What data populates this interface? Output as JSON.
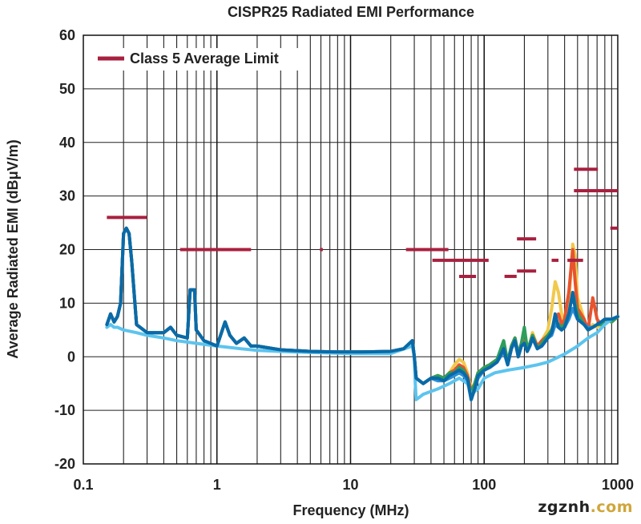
{
  "chart_data": {
    "type": "line",
    "title": "CISPR25 Radiated EMI Performance",
    "xlabel": "Frequency (MHz)",
    "ylabel": "Average Radiated EMI (dBμV/m)",
    "xscale": "log",
    "xlim": [
      0.1,
      1000
    ],
    "ylim": [
      -20,
      60
    ],
    "x_ticks": [
      "0.1",
      "1",
      "10",
      "100",
      "1000"
    ],
    "y_ticks": [
      "60",
      "50",
      "40",
      "30",
      "20",
      "10",
      "0",
      "-10",
      "-20"
    ],
    "grid": true,
    "legend": {
      "placement": "top-left",
      "entries": [
        {
          "label": "Class 5 Average Limit",
          "color": "#a8203f"
        }
      ]
    },
    "limit_line": {
      "name": "Class 5 Average Limit",
      "color": "#a8203f",
      "segments": [
        {
          "x": [
            0.15,
            0.3
          ],
          "y": 26
        },
        {
          "x": [
            0.53,
            1.8
          ],
          "y": 20
        },
        {
          "x": [
            5.9,
            6.2
          ],
          "y": 20
        },
        {
          "x": [
            26,
            54
          ],
          "y": 20
        },
        {
          "x": [
            41,
            108
          ],
          "y": 18
        },
        {
          "x": [
            65,
            87
          ],
          "y": 15
        },
        {
          "x": [
            142,
            175
          ],
          "y": 15
        },
        {
          "x": [
            176,
            245
          ],
          "y": 22
        },
        {
          "x": [
            176,
            245
          ],
          "y": 16
        },
        {
          "x": [
            320,
            360
          ],
          "y": 18
        },
        {
          "x": [
            420,
            550
          ],
          "y": 18
        },
        {
          "x": [
            470,
            710
          ],
          "y": 35
        },
        {
          "x": [
            470,
            1000
          ],
          "y": 31
        },
        {
          "x": [
            880,
            1000
          ],
          "y": 24
        }
      ]
    },
    "series": [
      {
        "color": "#f2c94c",
        "x": [
          0.15,
          0.16,
          0.17,
          0.18,
          0.19,
          0.2,
          0.21,
          0.22,
          0.23,
          0.25,
          0.3,
          0.4,
          0.45,
          0.5,
          0.6,
          0.63,
          0.65,
          0.68,
          0.7,
          0.8,
          1.0,
          1.15,
          1.25,
          1.4,
          1.6,
          1.8,
          2.0,
          3.0,
          5.0,
          8.0,
          12.0,
          20.0,
          25.0,
          29.0,
          30.0,
          31.0,
          35.0,
          40.0,
          45.0,
          50.0,
          55.0,
          60.0,
          65.0,
          70.0,
          75.0,
          80.0,
          85.0,
          90.0,
          100.0,
          110.0,
          125.0,
          140.0,
          150.0,
          160.0,
          170.0,
          180.0,
          190.0,
          200.0,
          210.0,
          220.0,
          230.0,
          250.0,
          270.0,
          300.0,
          320.0,
          340.0,
          360.0,
          380.0,
          400.0,
          430.0,
          460.0,
          480.0,
          500.0,
          530.0,
          560.0,
          600.0,
          650.0,
          700.0,
          750.0,
          800.0,
          900.0,
          1000.0
        ],
        "y": [
          6,
          8,
          6.5,
          7.5,
          10,
          23,
          24,
          23,
          18,
          6,
          4.5,
          4.5,
          5.5,
          4,
          3.5,
          12.5,
          12.5,
          12.5,
          5,
          3,
          2,
          6.5,
          4,
          2.5,
          3.5,
          2,
          2,
          1.3,
          1,
          0.9,
          0.9,
          1,
          1.5,
          3,
          0,
          -4,
          -5,
          -4,
          -3.5,
          -4,
          -3,
          -1.5,
          -0.5,
          -1,
          -3,
          -6,
          -5,
          -3,
          -2,
          -1.5,
          -0.5,
          1.5,
          -1,
          2,
          3.5,
          0.5,
          2.5,
          3,
          1.5,
          2.5,
          4.5,
          2,
          3,
          5,
          9,
          14,
          12,
          8,
          6,
          10,
          21,
          19,
          11,
          9,
          7,
          5,
          6,
          5.5,
          6,
          7,
          6.5,
          7.5
        ]
      },
      {
        "color": "#e8532f",
        "x": [
          0.15,
          0.16,
          0.17,
          0.18,
          0.19,
          0.2,
          0.21,
          0.22,
          0.23,
          0.25,
          0.3,
          0.4,
          0.45,
          0.5,
          0.6,
          0.63,
          0.65,
          0.68,
          0.7,
          0.8,
          1.0,
          1.15,
          1.25,
          1.4,
          1.6,
          1.8,
          2.0,
          3.0,
          5.0,
          8.0,
          12.0,
          20.0,
          25.0,
          29.0,
          30.0,
          31.0,
          35.0,
          40.0,
          45.0,
          50.0,
          55.0,
          60.0,
          65.0,
          70.0,
          75.0,
          80.0,
          85.0,
          90.0,
          100.0,
          110.0,
          125.0,
          140.0,
          150.0,
          160.0,
          170.0,
          180.0,
          190.0,
          200.0,
          210.0,
          220.0,
          230.0,
          250.0,
          270.0,
          300.0,
          320.0,
          340.0,
          360.0,
          380.0,
          400.0,
          430.0,
          460.0,
          480.0,
          500.0,
          530.0,
          560.0,
          600.0,
          650.0,
          700.0,
          750.0,
          800.0,
          900.0,
          1000.0
        ],
        "y": [
          6,
          8,
          6.5,
          7.5,
          10,
          23,
          24,
          23,
          18,
          6,
          4.5,
          4.5,
          5.5,
          4,
          3.5,
          12.5,
          12.5,
          12.5,
          5,
          3,
          2,
          6.5,
          4,
          2.5,
          3.5,
          2,
          2,
          1.3,
          1,
          0.9,
          0.9,
          1,
          1.5,
          3,
          0,
          -4,
          -5,
          -4,
          -3.5,
          -4,
          -3,
          -2.5,
          -1.5,
          -2,
          -3.5,
          -6.5,
          -5,
          -3,
          -2,
          -1.5,
          -0.5,
          1.5,
          -1,
          2,
          3.5,
          0.5,
          2.5,
          3,
          1.5,
          2.5,
          4,
          2,
          3,
          4,
          5,
          7,
          8,
          6,
          7,
          12,
          20,
          14,
          9,
          8,
          7,
          5,
          11,
          7,
          6,
          7,
          6.5,
          7.5
        ]
      },
      {
        "color": "#2e9e5b",
        "x": [
          0.15,
          0.16,
          0.17,
          0.18,
          0.19,
          0.2,
          0.21,
          0.22,
          0.23,
          0.25,
          0.3,
          0.4,
          0.45,
          0.5,
          0.6,
          0.63,
          0.65,
          0.68,
          0.7,
          0.8,
          1.0,
          1.15,
          1.25,
          1.4,
          1.6,
          1.8,
          2.0,
          3.0,
          5.0,
          8.0,
          12.0,
          20.0,
          25.0,
          29.0,
          30.0,
          31.0,
          35.0,
          40.0,
          45.0,
          50.0,
          55.0,
          60.0,
          65.0,
          70.0,
          75.0,
          80.0,
          85.0,
          90.0,
          100.0,
          110.0,
          125.0,
          140.0,
          150.0,
          160.0,
          170.0,
          180.0,
          190.0,
          200.0,
          210.0,
          220.0,
          230.0,
          250.0,
          270.0,
          300.0,
          320.0,
          340.0,
          360.0,
          380.0,
          400.0,
          430.0,
          460.0,
          480.0,
          500.0,
          530.0,
          560.0,
          600.0,
          650.0,
          700.0,
          750.0,
          800.0,
          900.0,
          1000.0
        ],
        "y": [
          6,
          8,
          6.5,
          7.5,
          10,
          23,
          24,
          23,
          18,
          6,
          4.5,
          4.5,
          5.5,
          4,
          3.5,
          12.5,
          12.5,
          12.5,
          5,
          3,
          2,
          6.5,
          4,
          2.5,
          3.5,
          2,
          2,
          1.3,
          1,
          0.9,
          0.9,
          1,
          1.5,
          3,
          0,
          -4,
          -5,
          -4,
          -3.5,
          -4,
          -3,
          -3,
          -2,
          -2.5,
          -4,
          -7,
          -5,
          -3,
          -2,
          -1.5,
          -0.5,
          3,
          -1,
          2,
          3.5,
          0.5,
          2.5,
          5.5,
          1.5,
          2.5,
          4,
          1.5,
          2.5,
          4,
          5,
          7,
          6,
          5.5,
          6,
          8,
          12,
          10,
          8,
          7,
          6,
          5,
          5.5,
          6,
          6,
          7,
          6.5,
          7.5
        ]
      },
      {
        "color": "#2a8fd6",
        "x": [
          0.15,
          0.16,
          0.17,
          0.18,
          0.19,
          0.2,
          0.21,
          0.22,
          0.23,
          0.25,
          0.3,
          0.4,
          0.45,
          0.5,
          0.6,
          0.63,
          0.65,
          0.68,
          0.7,
          0.8,
          1.0,
          1.15,
          1.25,
          1.4,
          1.6,
          1.8,
          2.0,
          3.0,
          5.0,
          8.0,
          12.0,
          20.0,
          25.0,
          29.0,
          30.0,
          31.0,
          35.0,
          40.0,
          45.0,
          50.0,
          55.0,
          60.0,
          65.0,
          70.0,
          75.0,
          80.0,
          85.0,
          90.0,
          100.0,
          110.0,
          125.0,
          140.0,
          150.0,
          160.0,
          170.0,
          180.0,
          190.0,
          200.0,
          210.0,
          220.0,
          230.0,
          250.0,
          270.0,
          300.0,
          320.0,
          340.0,
          360.0,
          380.0,
          400.0,
          430.0,
          460.0,
          480.0,
          500.0,
          530.0,
          560.0,
          600.0,
          650.0,
          700.0,
          750.0,
          800.0,
          900.0,
          1000.0
        ],
        "y": [
          6,
          8,
          6.5,
          7.5,
          10,
          23,
          24,
          23,
          18,
          6,
          4.5,
          4.5,
          5.5,
          4,
          3.5,
          12.5,
          12.5,
          12.5,
          5,
          3,
          2,
          6.5,
          4,
          2.5,
          3.5,
          2,
          2,
          1.3,
          1,
          0.9,
          0.9,
          1,
          1.5,
          3,
          0,
          -4,
          -5,
          -4,
          -4.5,
          -4.5,
          -4,
          -3.5,
          -3,
          -3.5,
          -4.5,
          -8,
          -6,
          -4,
          -2.5,
          -2,
          -1,
          1,
          -1.5,
          1.5,
          3,
          0,
          2,
          2.5,
          1,
          2,
          3.5,
          1.5,
          2,
          3.5,
          4,
          6,
          5.5,
          5,
          5.5,
          7,
          9,
          8,
          7,
          6.5,
          6,
          5.5,
          5.5,
          6,
          6.5,
          7,
          7,
          7.5
        ]
      },
      {
        "color": "#5cc4ee",
        "x": [
          0.15,
          0.16,
          0.17,
          0.18,
          0.2,
          0.25,
          0.3,
          0.4,
          0.5,
          0.7,
          1.0,
          1.5,
          2.0,
          3.0,
          5.0,
          10.0,
          20.0,
          29.0,
          30.0,
          30.5,
          31.0,
          35.0,
          45.0,
          55.0,
          65.0,
          75.0,
          80.0,
          90.0,
          100.0,
          120.0,
          150.0,
          200.0,
          250.0,
          300.0,
          400.0,
          500.0,
          600.0,
          700.0,
          800.0,
          900.0,
          1000.0
        ],
        "y": [
          5.5,
          6,
          5.5,
          5.5,
          5,
          4.5,
          4,
          3.5,
          3,
          2.5,
          2,
          1.5,
          1.2,
          1,
          0.8,
          0.6,
          0.6,
          2,
          0,
          -5,
          -8,
          -7,
          -6,
          -5,
          -4,
          -5,
          -7,
          -6,
          -4,
          -3,
          -2.5,
          -2,
          -1.5,
          -1,
          0.5,
          2,
          3.5,
          4.5,
          6,
          7,
          7.5
        ]
      },
      {
        "color": "#0a6aa8",
        "x": [
          0.15,
          0.16,
          0.17,
          0.18,
          0.19,
          0.2,
          0.21,
          0.22,
          0.23,
          0.25,
          0.3,
          0.4,
          0.45,
          0.5,
          0.6,
          0.63,
          0.65,
          0.68,
          0.7,
          0.8,
          1.0,
          1.15,
          1.25,
          1.4,
          1.6,
          1.8,
          2.0,
          3.0,
          5.0,
          8.0,
          12.0,
          20.0,
          25.0,
          29.0,
          30.0,
          31.0,
          35.0,
          40.0,
          45.0,
          50.0,
          55.0,
          60.0,
          65.0,
          70.0,
          75.0,
          80.0,
          85.0,
          90.0,
          100.0,
          110.0,
          125.0,
          140.0,
          150.0,
          160.0,
          170.0,
          180.0,
          190.0,
          200.0,
          210.0,
          220.0,
          230.0,
          250.0,
          270.0,
          300.0,
          320.0,
          340.0,
          360.0,
          380.0,
          400.0,
          430.0,
          460.0,
          480.0,
          500.0,
          530.0,
          560.0,
          600.0,
          650.0,
          700.0,
          750.0,
          800.0,
          900.0,
          1000.0
        ],
        "y": [
          6,
          8,
          6.5,
          7.5,
          10,
          23,
          24,
          23,
          18,
          6,
          4.5,
          4.5,
          5.5,
          4,
          3.5,
          12.5,
          12.5,
          12.5,
          5,
          3,
          2,
          6.5,
          4,
          2.5,
          3.5,
          2,
          2,
          1.3,
          1,
          0.9,
          0.9,
          1,
          1.5,
          3,
          0,
          -4,
          -5,
          -4,
          -4,
          -4.5,
          -3.5,
          -3,
          -2.5,
          -3,
          -4,
          -8,
          -6,
          -3.5,
          -2.5,
          -2,
          -1,
          1.5,
          -1.5,
          1.5,
          3,
          0,
          2,
          2.5,
          1,
          2,
          3.5,
          1.5,
          2,
          3.5,
          4.5,
          8,
          5.5,
          5,
          5.5,
          8,
          12,
          9,
          7,
          6.5,
          6,
          5,
          5.5,
          6,
          6.5,
          7,
          7,
          7.5
        ]
      }
    ]
  },
  "watermark": {
    "part1": "zgznh",
    "part2": ".com"
  }
}
